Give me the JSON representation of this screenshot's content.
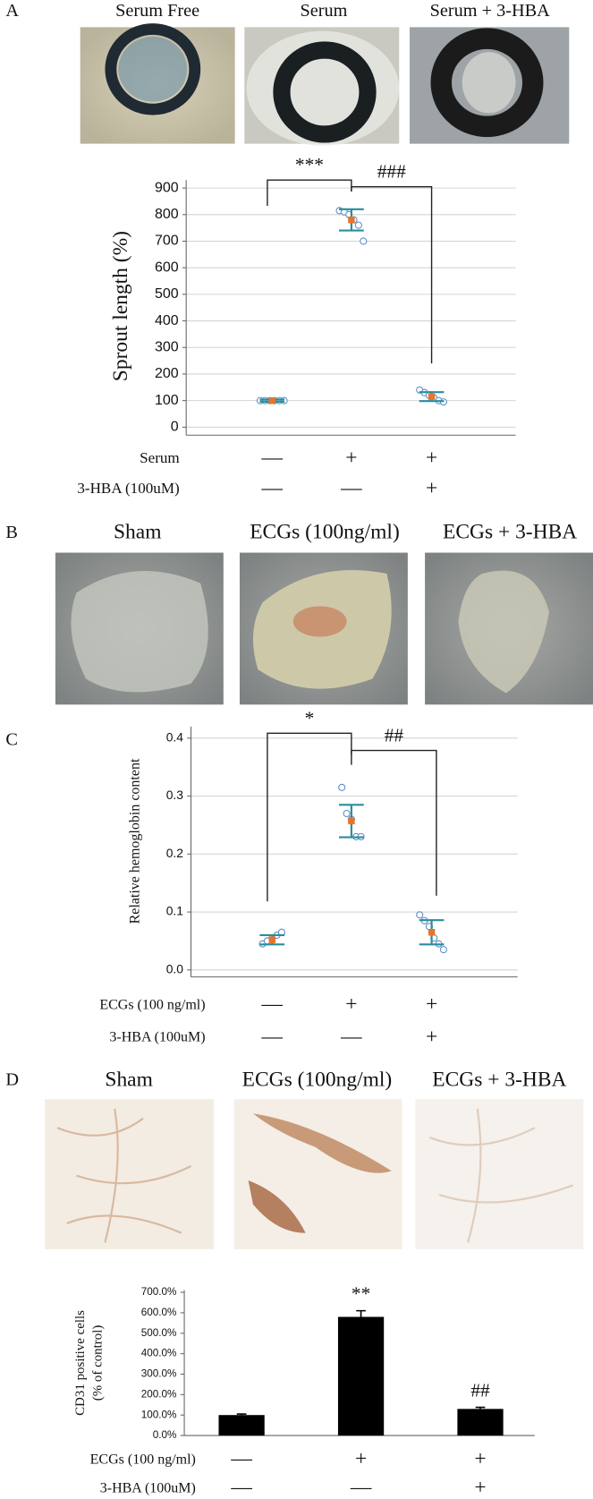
{
  "panel_labels": [
    "A",
    "B",
    "C",
    "D"
  ],
  "photo_titles": {
    "A": [
      "Serum Free",
      "Serum",
      "Serum + 3-HBA"
    ],
    "B": [
      "Sham",
      "ECGs (100ng/ml)",
      "ECGs + 3-HBA"
    ],
    "D": [
      "Sham",
      "ECGs (100ng/ml)",
      "ECGs + 3-HBA"
    ]
  },
  "chart_data": [
    {
      "type": "dotplot",
      "y_label": "Sprout length (%)",
      "ylim": [
        -30,
        930
      ],
      "yticks": [
        0,
        100,
        200,
        300,
        400,
        500,
        600,
        700,
        800,
        900
      ],
      "grid": true,
      "point_color": "#5b8fc7",
      "mean_color": "#e8742c",
      "error_color": "#2a8d9c",
      "points": [
        [
          100,
          100,
          100,
          100,
          100,
          100
        ],
        [
          815,
          810,
          800,
          780,
          760,
          700
        ],
        [
          140,
          130,
          120,
          110,
          100,
          95
        ]
      ],
      "means": [
        100,
        780,
        115
      ],
      "errors": [
        4,
        40,
        17
      ],
      "annotations": [
        "***",
        "###"
      ],
      "conditions": [
        {
          "label": "Serum",
          "marks": [
            "—",
            "+",
            "+"
          ]
        },
        {
          "label": "3-HBA (100uM)",
          "marks": [
            "—",
            "—",
            "+"
          ]
        }
      ]
    },
    {
      "type": "dotplot",
      "y_label": "Relative hemoglobin content",
      "ylim": [
        -0.012,
        0.42
      ],
      "yticks": [
        {
          "value": 0,
          "label": "0.0"
        },
        0.1,
        0.2,
        0.3,
        0.4
      ],
      "grid": true,
      "point_color": "#5b8fc7",
      "mean_color": "#e8742c",
      "error_color": "#2a8d9c",
      "points": [
        [
          0.045,
          0.05,
          0.055,
          0.06,
          0.065
        ],
        [
          0.315,
          0.27,
          0.26,
          0.23,
          0.23
        ],
        [
          0.095,
          0.085,
          0.075,
          0.055,
          0.045,
          0.035
        ]
      ],
      "means": [
        0.052,
        0.257,
        0.065
      ],
      "errors": [
        0.008,
        0.028,
        0.021
      ],
      "annotations": [
        "*",
        "##"
      ],
      "conditions": [
        {
          "label": "ECGs (100 ng/ml)",
          "marks": [
            "—",
            "+",
            "+"
          ]
        },
        {
          "label": "3-HBA (100uM)",
          "marks": [
            "—",
            "—",
            "+"
          ]
        }
      ]
    },
    {
      "type": "bar",
      "y_label": [
        "CD31 positive cells",
        "(% of control)"
      ],
      "ylim": [
        0,
        710
      ],
      "yticks": [
        {
          "value": 0,
          "label": "0.0%"
        },
        {
          "value": 100,
          "label": "100.0%"
        },
        {
          "value": 200,
          "label": "200.0%"
        },
        {
          "value": 300,
          "label": "300.0%"
        },
        {
          "value": 400,
          "label": "400.0%"
        },
        {
          "value": 500,
          "label": "500.0%"
        },
        {
          "value": 600,
          "label": "600.0%"
        },
        {
          "value": 700,
          "label": "700.0%"
        }
      ],
      "grid": false,
      "color": "#000000",
      "values": [
        100,
        580,
        130
      ],
      "errors": [
        5,
        30,
        8
      ],
      "annotations": [
        "**",
        "##"
      ],
      "conditions": [
        {
          "label": "ECGs (100 ng/ml)",
          "marks": [
            "—",
            "+",
            "+"
          ]
        },
        {
          "label": "3-HBA (100uM)",
          "marks": [
            "—",
            "—",
            "+"
          ]
        }
      ]
    }
  ]
}
